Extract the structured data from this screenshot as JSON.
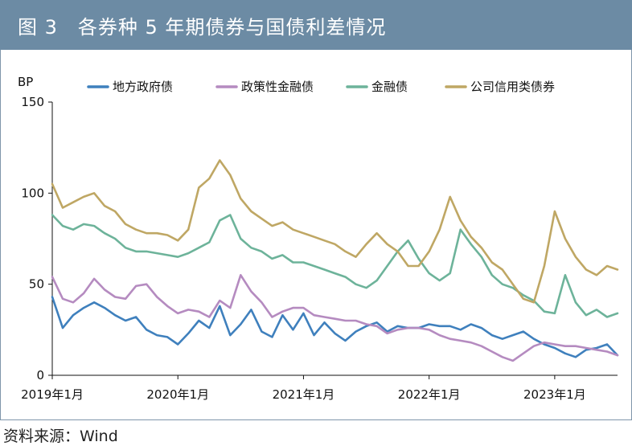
{
  "header": {
    "title": "图 3　各券种 5 年期债券与国债利差情况"
  },
  "source": "资料来源：Wind",
  "chart_data": {
    "type": "line",
    "title": "各券种 5 年期债券与国债利差情况",
    "ylabel": "BP",
    "xlabel": "",
    "ylim": [
      0,
      150
    ],
    "yticks": [
      0,
      50,
      100,
      150
    ],
    "grid": false,
    "legend_position": "top",
    "xlim": [
      "2019-01",
      "2023-07"
    ],
    "x_ticks": [
      "2019年1月",
      "2020年1月",
      "2021年1月",
      "2022年1月",
      "2023年1月"
    ],
    "x": [
      "2019-01",
      "2019-02",
      "2019-03",
      "2019-04",
      "2019-05",
      "2019-06",
      "2019-07",
      "2019-08",
      "2019-09",
      "2019-10",
      "2019-11",
      "2019-12",
      "2020-01",
      "2020-02",
      "2020-03",
      "2020-04",
      "2020-05",
      "2020-06",
      "2020-07",
      "2020-08",
      "2020-09",
      "2020-10",
      "2020-11",
      "2020-12",
      "2021-01",
      "2021-02",
      "2021-03",
      "2021-04",
      "2021-05",
      "2021-06",
      "2021-07",
      "2021-08",
      "2021-09",
      "2021-10",
      "2021-11",
      "2021-12",
      "2022-01",
      "2022-02",
      "2022-03",
      "2022-04",
      "2022-05",
      "2022-06",
      "2022-07",
      "2022-08",
      "2022-09",
      "2022-10",
      "2022-11",
      "2022-12",
      "2023-01",
      "2023-02",
      "2023-03",
      "2023-04",
      "2023-05",
      "2023-06",
      "2023-07"
    ],
    "series": [
      {
        "name": "地方政府债",
        "color": "#3f80bd",
        "values": [
          43,
          26,
          33,
          37,
          40,
          37,
          33,
          30,
          32,
          25,
          22,
          21,
          17,
          23,
          30,
          26,
          38,
          22,
          28,
          36,
          24,
          21,
          33,
          25,
          34,
          22,
          29,
          23,
          19,
          24,
          27,
          29,
          24,
          27,
          26,
          26,
          28,
          27,
          27,
          25,
          28,
          26,
          22,
          20,
          22,
          24,
          20,
          17,
          15,
          12,
          10,
          14,
          15,
          17,
          11
        ]
      },
      {
        "name": "政策性金融债",
        "color": "#b58bc0",
        "values": [
          54,
          42,
          40,
          45,
          53,
          47,
          43,
          42,
          49,
          50,
          43,
          38,
          34,
          36,
          35,
          32,
          41,
          37,
          55,
          46,
          40,
          32,
          35,
          37,
          37,
          33,
          32,
          31,
          30,
          30,
          28,
          27,
          23,
          25,
          26,
          26,
          25,
          22,
          20,
          19,
          18,
          16,
          13,
          10,
          8,
          12,
          16,
          18,
          17,
          16,
          16,
          15,
          14,
          13,
          11
        ]
      },
      {
        "name": "金融债",
        "color": "#6db39a",
        "values": [
          88,
          82,
          80,
          83,
          82,
          78,
          75,
          70,
          68,
          68,
          67,
          66,
          65,
          67,
          70,
          73,
          85,
          88,
          75,
          70,
          68,
          64,
          66,
          62,
          62,
          60,
          58,
          56,
          54,
          50,
          48,
          52,
          60,
          68,
          74,
          64,
          56,
          52,
          56,
          80,
          72,
          65,
          55,
          50,
          48,
          44,
          41,
          35,
          34,
          55,
          40,
          33,
          36,
          32,
          34
        ]
      },
      {
        "name": "公司信用类债券",
        "color": "#bfa764",
        "values": [
          105,
          92,
          95,
          98,
          100,
          93,
          90,
          83,
          80,
          78,
          78,
          77,
          74,
          80,
          103,
          108,
          118,
          110,
          97,
          90,
          86,
          82,
          84,
          80,
          78,
          76,
          74,
          72,
          68,
          65,
          72,
          78,
          72,
          68,
          60,
          60,
          68,
          80,
          98,
          85,
          76,
          70,
          62,
          58,
          50,
          42,
          40,
          60,
          90,
          75,
          65,
          58,
          55,
          60,
          58
        ]
      }
    ]
  }
}
